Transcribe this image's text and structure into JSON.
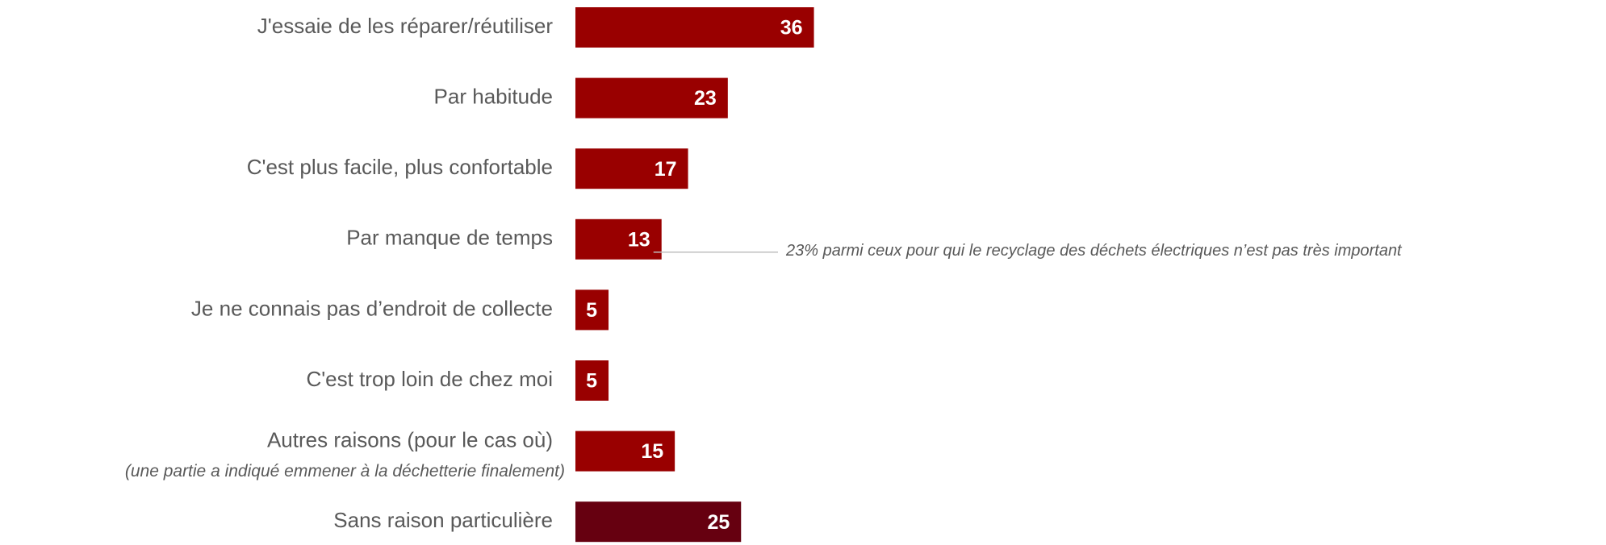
{
  "chart_data": {
    "type": "bar",
    "orientation": "horizontal",
    "categories": [
      "J'essaie de les réparer/réutiliser",
      "Par habitude",
      "C'est plus facile, plus confortable",
      "Par manque de temps",
      "Je ne connais pas d’endroit de collecte",
      "C'est trop loin de chez moi",
      "Autres raisons (pour le cas où)",
      "Sans raison particulière"
    ],
    "category_notes": [
      null,
      null,
      null,
      null,
      null,
      null,
      "(une partie a indiqué emmener à la déchetterie finalement)",
      null
    ],
    "values": [
      36,
      23,
      17,
      13,
      5,
      5,
      15,
      25
    ],
    "colors": [
      "#990000",
      "#990000",
      "#990000",
      "#990000",
      "#990000",
      "#990000",
      "#990000",
      "#660010"
    ],
    "annotations": [
      null,
      null,
      null,
      "23% parmi ceux pour qui le recyclage des déchets électriques n’est pas très important",
      null,
      null,
      null,
      null
    ]
  }
}
